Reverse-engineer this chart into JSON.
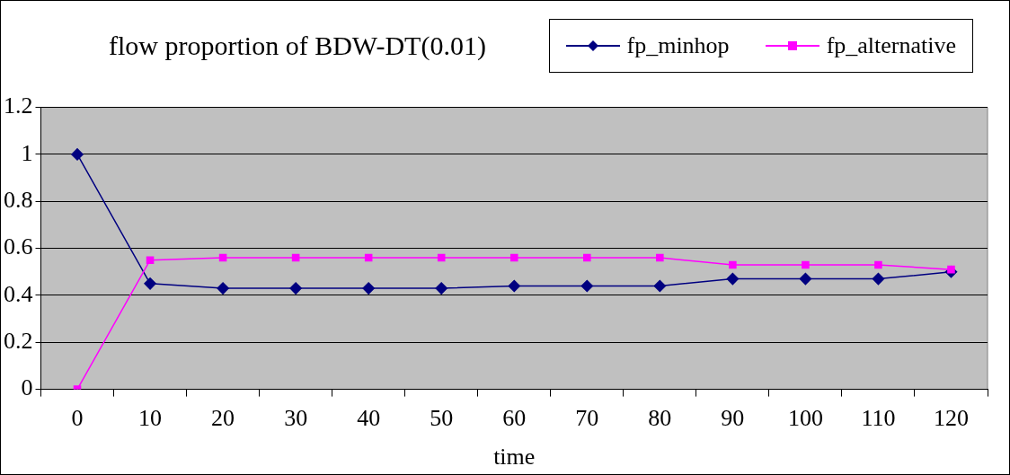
{
  "chart_data": {
    "type": "line",
    "title": "flow proportion of BDW-DT(0.01)",
    "xlabel": "time",
    "categories": [
      "0",
      "10",
      "20",
      "30",
      "40",
      "50",
      "60",
      "70",
      "80",
      "90",
      "100",
      "110",
      "120"
    ],
    "series": [
      {
        "name": "fp_minhop",
        "color": "#000080",
        "marker": "diamond",
        "values": [
          1,
          0.45,
          0.43,
          0.43,
          0.43,
          0.43,
          0.44,
          0.44,
          0.44,
          0.47,
          0.47,
          0.47,
          0.5
        ]
      },
      {
        "name": "fp_alternative",
        "color": "#ff00ff",
        "marker": "square",
        "values": [
          0,
          0.55,
          0.56,
          0.56,
          0.56,
          0.56,
          0.56,
          0.56,
          0.56,
          0.53,
          0.53,
          0.53,
          0.51
        ]
      }
    ],
    "ylim": [
      0,
      1.2
    ],
    "yticks": [
      0,
      0.2,
      0.4,
      0.6,
      0.8,
      1,
      1.2
    ],
    "grid": "y",
    "legend": "top right",
    "line_style": "solid"
  }
}
